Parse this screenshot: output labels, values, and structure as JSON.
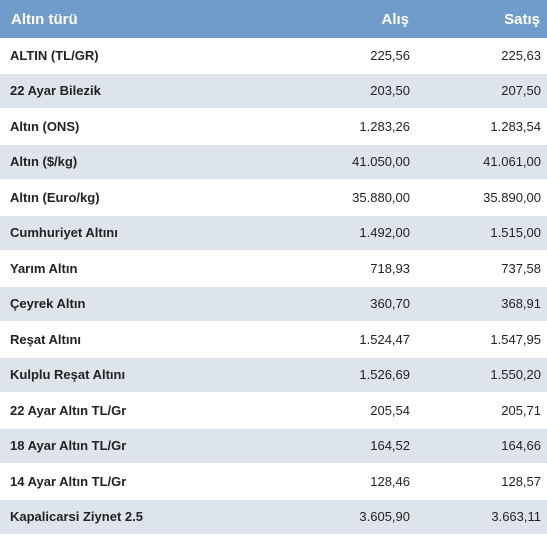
{
  "table": {
    "headers": {
      "name": "Altın türü",
      "buy": "Alış",
      "sell": "Satış"
    },
    "rows": [
      {
        "name": "ALTIN (TL/GR)",
        "buy": "225,56",
        "sell": "225,63"
      },
      {
        "name": "22 Ayar Bilezik",
        "buy": "203,50",
        "sell": "207,50"
      },
      {
        "name": "Altın (ONS)",
        "buy": "1.283,26",
        "sell": "1.283,54"
      },
      {
        "name": "Altın ($/kg)",
        "buy": "41.050,00",
        "sell": "41.061,00"
      },
      {
        "name": "Altın (Euro/kg)",
        "buy": "35.880,00",
        "sell": "35.890,00"
      },
      {
        "name": "Cumhuriyet Altını",
        "buy": "1.492,00",
        "sell": "1.515,00"
      },
      {
        "name": "Yarım Altın",
        "buy": "718,93",
        "sell": "737,58"
      },
      {
        "name": "Çeyrek Altın",
        "buy": "360,70",
        "sell": "368,91"
      },
      {
        "name": "Reşat Altını",
        "buy": "1.524,47",
        "sell": "1.547,95"
      },
      {
        "name": "Kulplu Reşat Altını",
        "buy": "1.526,69",
        "sell": "1.550,20"
      },
      {
        "name": "22 Ayar Altın TL/Gr",
        "buy": "205,54",
        "sell": "205,71"
      },
      {
        "name": "18 Ayar Altın TL/Gr",
        "buy": "164,52",
        "sell": "164,66"
      },
      {
        "name": "14 Ayar Altın TL/Gr",
        "buy": "128,46",
        "sell": "128,57"
      },
      {
        "name": "Kapalicarsi Ziynet 2.5",
        "buy": "3.605,90",
        "sell": "3.663,11"
      }
    ]
  },
  "colors": {
    "header_bg": "#6f9cc9",
    "header_text": "#ffffff",
    "row_alt_bg": "#dde4ec",
    "row_bg": "#ffffff",
    "text": "#222222"
  }
}
